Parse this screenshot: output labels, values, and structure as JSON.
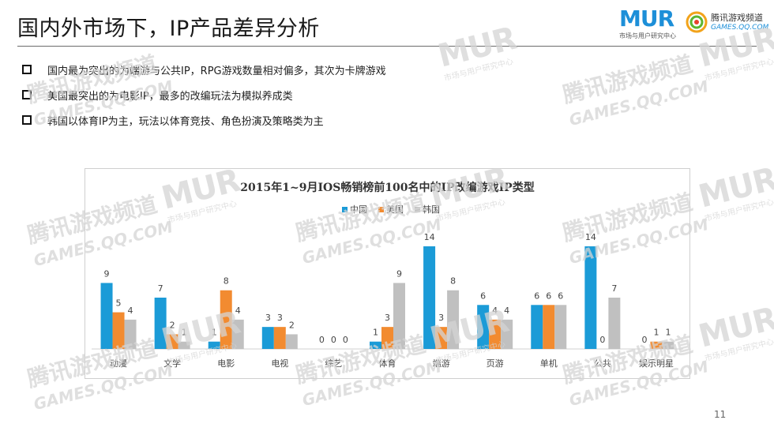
{
  "slide": {
    "title": "国内外市场下，IP产品差异分析",
    "page_number": "11"
  },
  "logos": {
    "mur_text": "MUR",
    "mur_sub": "市场与用户研究中心",
    "games_cn": "腾讯游戏频道",
    "games_en": "GAMES.QQ.COM"
  },
  "bullets": [
    "国内最为突出的为端游与公共IP，RPG游戏数量相对偏多，其次为卡牌游戏",
    "美国最突出的为电影IP，最多的改编玩法为模拟养成类",
    "韩国以体育IP为主，玩法以体育竞技、角色扮演及策略类为主"
  ],
  "watermark": {
    "mur": "MUR",
    "mur_sub": "市场与用户研究中心",
    "tx": "腾讯游戏频道",
    "tx_en": "GAMES.QQ.COM"
  },
  "chart_data": {
    "type": "bar",
    "title": "2015年1~9月IOS畅销榜前100名中的IP改编游戏IP类型",
    "categories": [
      "动漫",
      "文学",
      "电影",
      "电视",
      "综艺",
      "体育",
      "端游",
      "页游",
      "单机",
      "公共",
      "娱乐明星"
    ],
    "series": [
      {
        "name": "中国",
        "color": "#1b9bd7",
        "values": [
          9,
          7,
          1,
          3,
          0,
          1,
          14,
          6,
          6,
          14,
          0
        ]
      },
      {
        "name": "美国",
        "color": "#f28b30",
        "values": [
          5,
          2,
          8,
          3,
          0,
          3,
          3,
          4,
          6,
          0,
          1
        ]
      },
      {
        "name": "韩国",
        "color": "#c0c0c0",
        "values": [
          4,
          1,
          4,
          2,
          0,
          9,
          8,
          4,
          6,
          7,
          1
        ]
      }
    ],
    "ylim": [
      0,
      14
    ],
    "legend_position": "top",
    "grid": false,
    "data_labels": true
  }
}
